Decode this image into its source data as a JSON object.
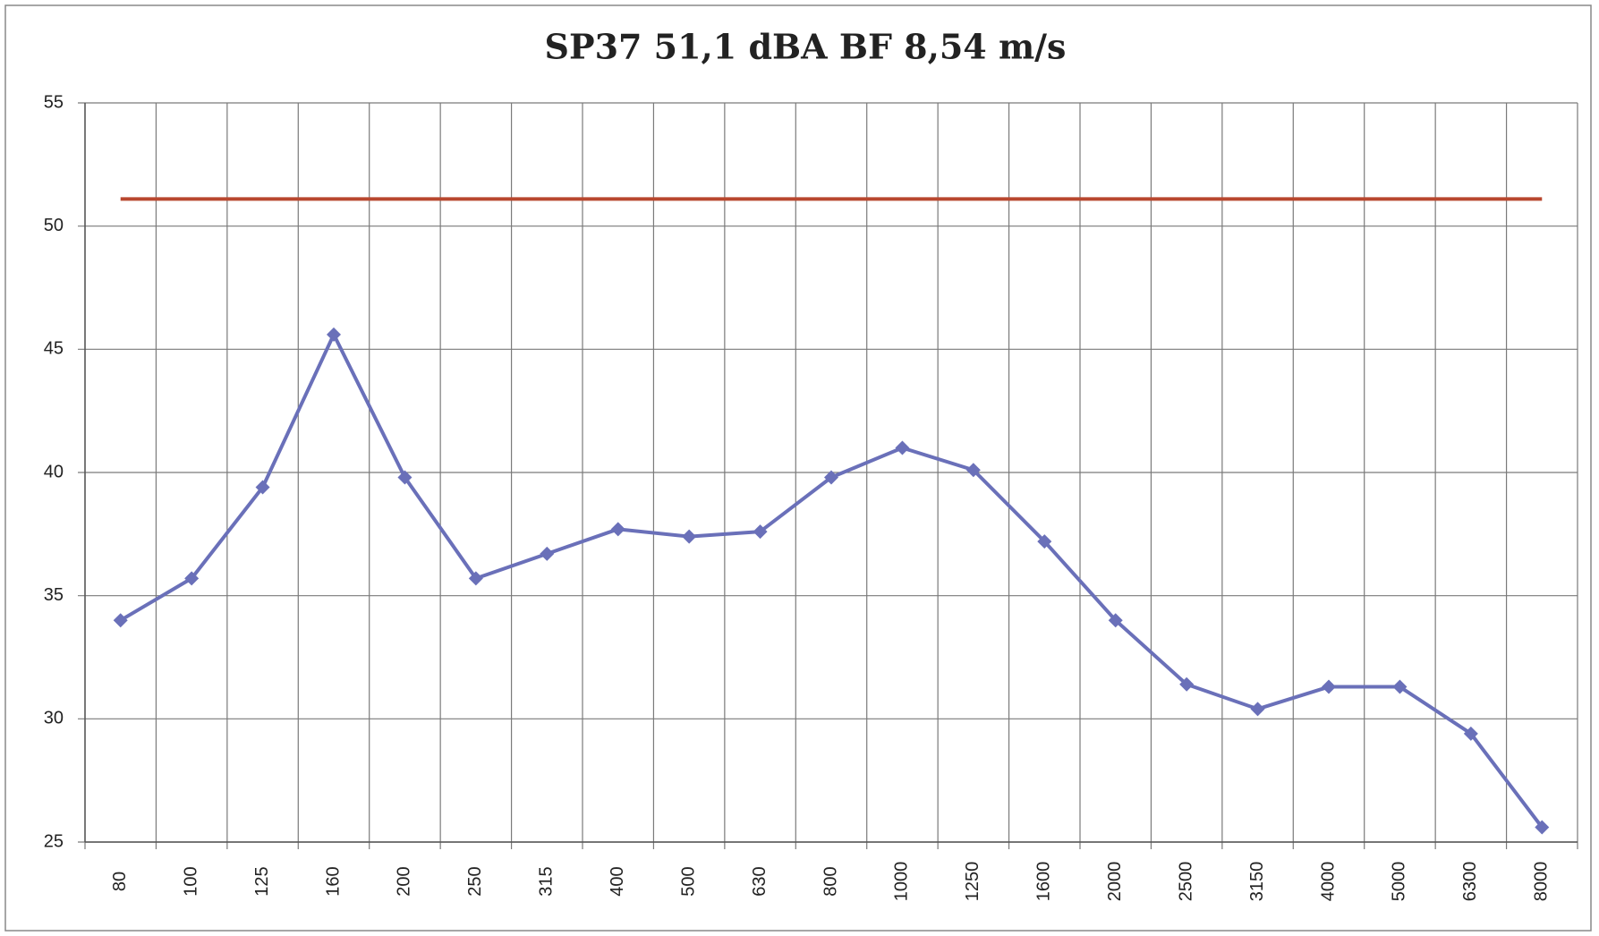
{
  "chart_data": {
    "type": "line",
    "title": "SP37 51,1 dBA BF 8,54 m/s",
    "categories": [
      "80",
      "100",
      "125",
      "160",
      "200",
      "250",
      "315",
      "400",
      "500",
      "630",
      "800",
      "1000",
      "1250",
      "1600",
      "2000",
      "2500",
      "3150",
      "4000",
      "5000",
      "6300",
      "8000"
    ],
    "series": [
      {
        "color": "#6a70b9",
        "marker": "diamond",
        "values": [
          34,
          35.7,
          39.4,
          45.6,
          39.8,
          35.7,
          36.7,
          37.7,
          37.4,
          37.6,
          39.8,
          41.0,
          40.1,
          37.2,
          34.0,
          31.4,
          30.4,
          31.3,
          31.3,
          29.4,
          25.6
        ]
      },
      {
        "color": "#b8472e",
        "values": [
          51.1,
          51.1,
          51.1,
          51.1,
          51.1,
          51.1,
          51.1,
          51.1,
          51.1,
          51.1,
          51.1,
          51.1,
          51.1,
          51.1,
          51.1,
          51.1,
          51.1,
          51.1,
          51.1,
          51.1,
          51.1
        ]
      }
    ],
    "ylim": [
      25,
      55
    ],
    "yticks": [
      25,
      30,
      35,
      40,
      45,
      50,
      55
    ],
    "grid": true
  }
}
